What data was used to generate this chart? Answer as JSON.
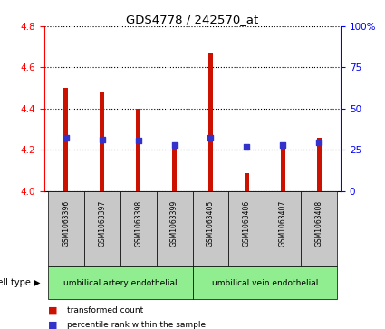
{
  "title": "GDS4778 / 242570_at",
  "samples": [
    "GSM1063396",
    "GSM1063397",
    "GSM1063398",
    "GSM1063399",
    "GSM1063405",
    "GSM1063406",
    "GSM1063407",
    "GSM1063408"
  ],
  "transformed_counts": [
    4.5,
    4.48,
    4.4,
    4.22,
    4.67,
    4.085,
    4.21,
    4.26
  ],
  "percentile_ranks": [
    32.5,
    31.0,
    30.5,
    28.0,
    32.5,
    27.0,
    28.0,
    29.5
  ],
  "ylim_left": [
    4.0,
    4.8
  ],
  "ylim_right": [
    0,
    100
  ],
  "yticks_left": [
    4.0,
    4.2,
    4.4,
    4.6,
    4.8
  ],
  "yticks_right": [
    0,
    25,
    50,
    75,
    100
  ],
  "cell_type_groups": [
    {
      "label": "umbilical artery endothelial",
      "indices": [
        0,
        1,
        2,
        3
      ],
      "color": "#90ee90"
    },
    {
      "label": "umbilical vein endothelial",
      "indices": [
        4,
        5,
        6,
        7
      ],
      "color": "#90ee90"
    }
  ],
  "bar_color": "#cc1100",
  "dot_color": "#3333cc",
  "label_bg_color": "#c8c8c8",
  "cell_type_label": "cell type",
  "legend_items": [
    "transformed count",
    "percentile rank within the sample"
  ],
  "bar_width": 0.12,
  "dot_size": 25,
  "dot_marker": "s"
}
